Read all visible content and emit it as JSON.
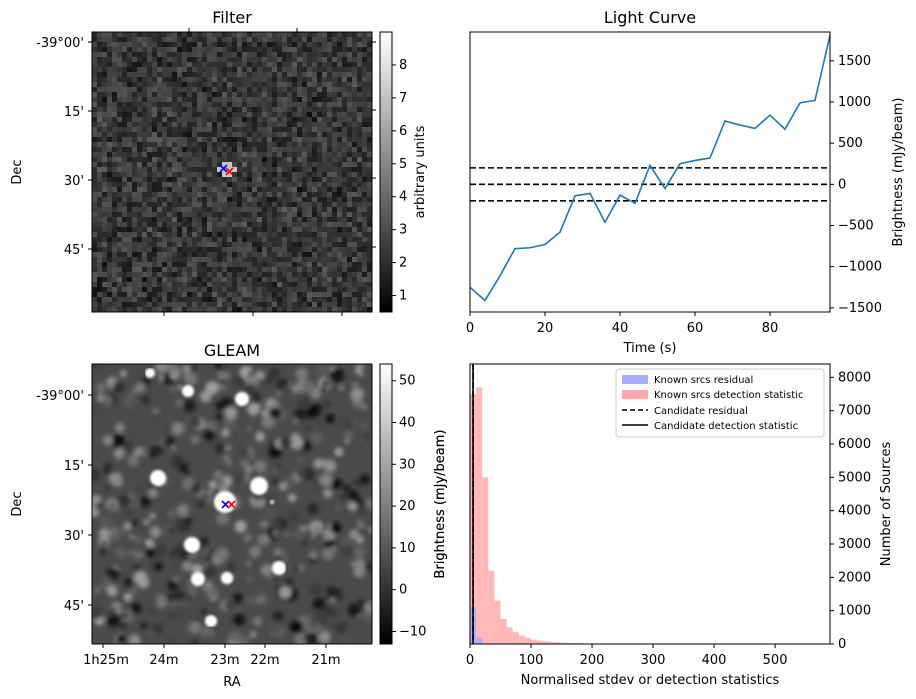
{
  "chart_data": [
    {
      "type": "heatmap",
      "title": "Filter",
      "ylabel": "Dec",
      "yticks": [
        "-39°00'",
        "15'",
        "30'",
        "45'"
      ],
      "colorbar": {
        "label": "arbitrary units",
        "ticks": [
          1,
          2,
          3,
          4,
          5,
          6,
          7,
          8
        ],
        "range": [
          0.5,
          9
        ]
      },
      "markers": [
        {
          "color": "#0000ff",
          "shape": "x"
        },
        {
          "color": "#ff0000",
          "shape": "x"
        }
      ]
    },
    {
      "type": "line",
      "title": "Light Curve",
      "xlabel": "Time (s)",
      "ylabel": "Brightness (mJy/beam)",
      "xlim": [
        0,
        96
      ],
      "ylim": [
        -1550,
        1850
      ],
      "xticks": [
        0,
        20,
        40,
        60,
        80
      ],
      "yticks": [
        -1500,
        -1000,
        -500,
        0,
        500,
        1000,
        1500
      ],
      "x": [
        0,
        4,
        8,
        12,
        16,
        20,
        24,
        28,
        32,
        36,
        40,
        44,
        48,
        52,
        56,
        60,
        64,
        68,
        72,
        76,
        80,
        84,
        88,
        92,
        96
      ],
      "series": [
        {
          "values": [
            -1250,
            -1410,
            -1110,
            -780,
            -770,
            -730,
            -580,
            -140,
            -110,
            -460,
            -130,
            -230,
            230,
            -50,
            250,
            290,
            320,
            770,
            720,
            680,
            840,
            670,
            990,
            1020,
            1810
          ],
          "color": "#1f77b4"
        }
      ],
      "hlines": [
        200,
        0,
        -200
      ],
      "hline_style": "dashed black"
    },
    {
      "type": "heatmap",
      "title": "GLEAM",
      "xlabel": "RA",
      "ylabel": "Dec",
      "xticks": [
        "1h25m",
        "24m",
        "23m",
        "22m",
        "21m"
      ],
      "yticks": [
        "-39°00'",
        "15'",
        "30'",
        "45'"
      ],
      "colorbar": {
        "label": "Brightness (mJy/beam)",
        "ticks": [
          -10,
          0,
          10,
          20,
          30,
          40,
          50
        ],
        "range": [
          -13,
          54
        ]
      },
      "markers": [
        {
          "color": "#0000ff",
          "shape": "x"
        },
        {
          "color": "#ff0000",
          "shape": "x"
        }
      ]
    },
    {
      "type": "bar",
      "xlabel": "Normalised stdev or detection statistics",
      "ylabel": "Number of Sources",
      "left_label": "Brightness (mJy/beam)",
      "xlim": [
        0,
        590
      ],
      "ylim": [
        0,
        8400
      ],
      "xticks": [
        0,
        100,
        200,
        300,
        400,
        500
      ],
      "yticks": [
        0,
        1000,
        2000,
        3000,
        4000,
        5000,
        6000,
        7000,
        8000
      ],
      "bin_width": 10,
      "series": [
        {
          "name": "Known srcs residual",
          "color": "#aaaaff",
          "bins_start": 0,
          "values": [
            1100,
            200,
            20,
            5
          ]
        },
        {
          "name": "Known srcs detection statistic",
          "color": "#ffaaaa",
          "bins_start": 0,
          "values": [
            7500,
            7700,
            5000,
            2200,
            1300,
            750,
            500,
            350,
            250,
            180,
            130,
            100,
            80,
            60,
            50,
            40,
            30,
            25,
            20,
            15,
            12,
            10,
            10,
            8,
            8,
            6,
            6,
            5,
            5,
            5,
            4,
            4,
            4,
            3,
            3,
            3,
            3,
            2,
            2,
            2,
            2,
            2,
            2,
            2,
            2,
            2,
            2,
            1,
            1,
            1,
            1,
            1,
            1,
            1,
            1,
            1,
            1
          ]
        }
      ],
      "lines": [
        {
          "name": "Candidate residual",
          "style": "dashed",
          "x": 5
        },
        {
          "name": "Candidate detection statistic",
          "style": "solid",
          "x": 5
        }
      ],
      "legend": "top-right"
    }
  ]
}
